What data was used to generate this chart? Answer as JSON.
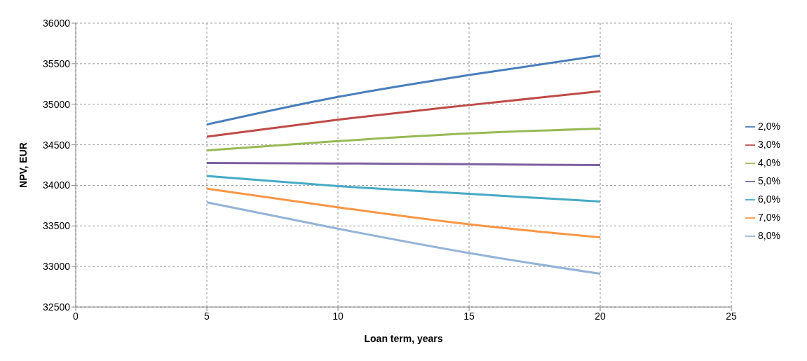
{
  "chart_data": {
    "type": "line",
    "xlabel": "Loan term, years",
    "ylabel": "NPV, EUR",
    "x": [
      5,
      10,
      15,
      20
    ],
    "series": [
      {
        "name": "2,0%",
        "color": "#4a7ebb",
        "values": [
          34750,
          35090,
          35360,
          35600
        ]
      },
      {
        "name": "3,0%",
        "color": "#be4b48",
        "values": [
          34600,
          34810,
          34990,
          35160
        ]
      },
      {
        "name": "4,0%",
        "color": "#98b954",
        "values": [
          34430,
          34545,
          34640,
          34700
        ]
      },
      {
        "name": "5,0%",
        "color": "#7d60a0",
        "values": [
          34275,
          34270,
          34260,
          34250
        ]
      },
      {
        "name": "6,0%",
        "color": "#46aac5",
        "values": [
          34115,
          33990,
          33895,
          33800
        ]
      },
      {
        "name": "7,0%",
        "color": "#f79646",
        "values": [
          33960,
          33730,
          33520,
          33360
        ]
      },
      {
        "name": "8,0%",
        "color": "#95b3d7",
        "values": [
          33790,
          33465,
          33165,
          32910
        ]
      }
    ],
    "xlim": [
      0,
      25
    ],
    "xticks": [
      0,
      5,
      10,
      15,
      20,
      25
    ],
    "ylim": [
      32500,
      36000
    ],
    "yticks": [
      32500,
      33000,
      33500,
      34000,
      34500,
      35000,
      35500,
      36000
    ],
    "grid": true,
    "legend": "right",
    "marker": "none",
    "line_style": "solid"
  }
}
